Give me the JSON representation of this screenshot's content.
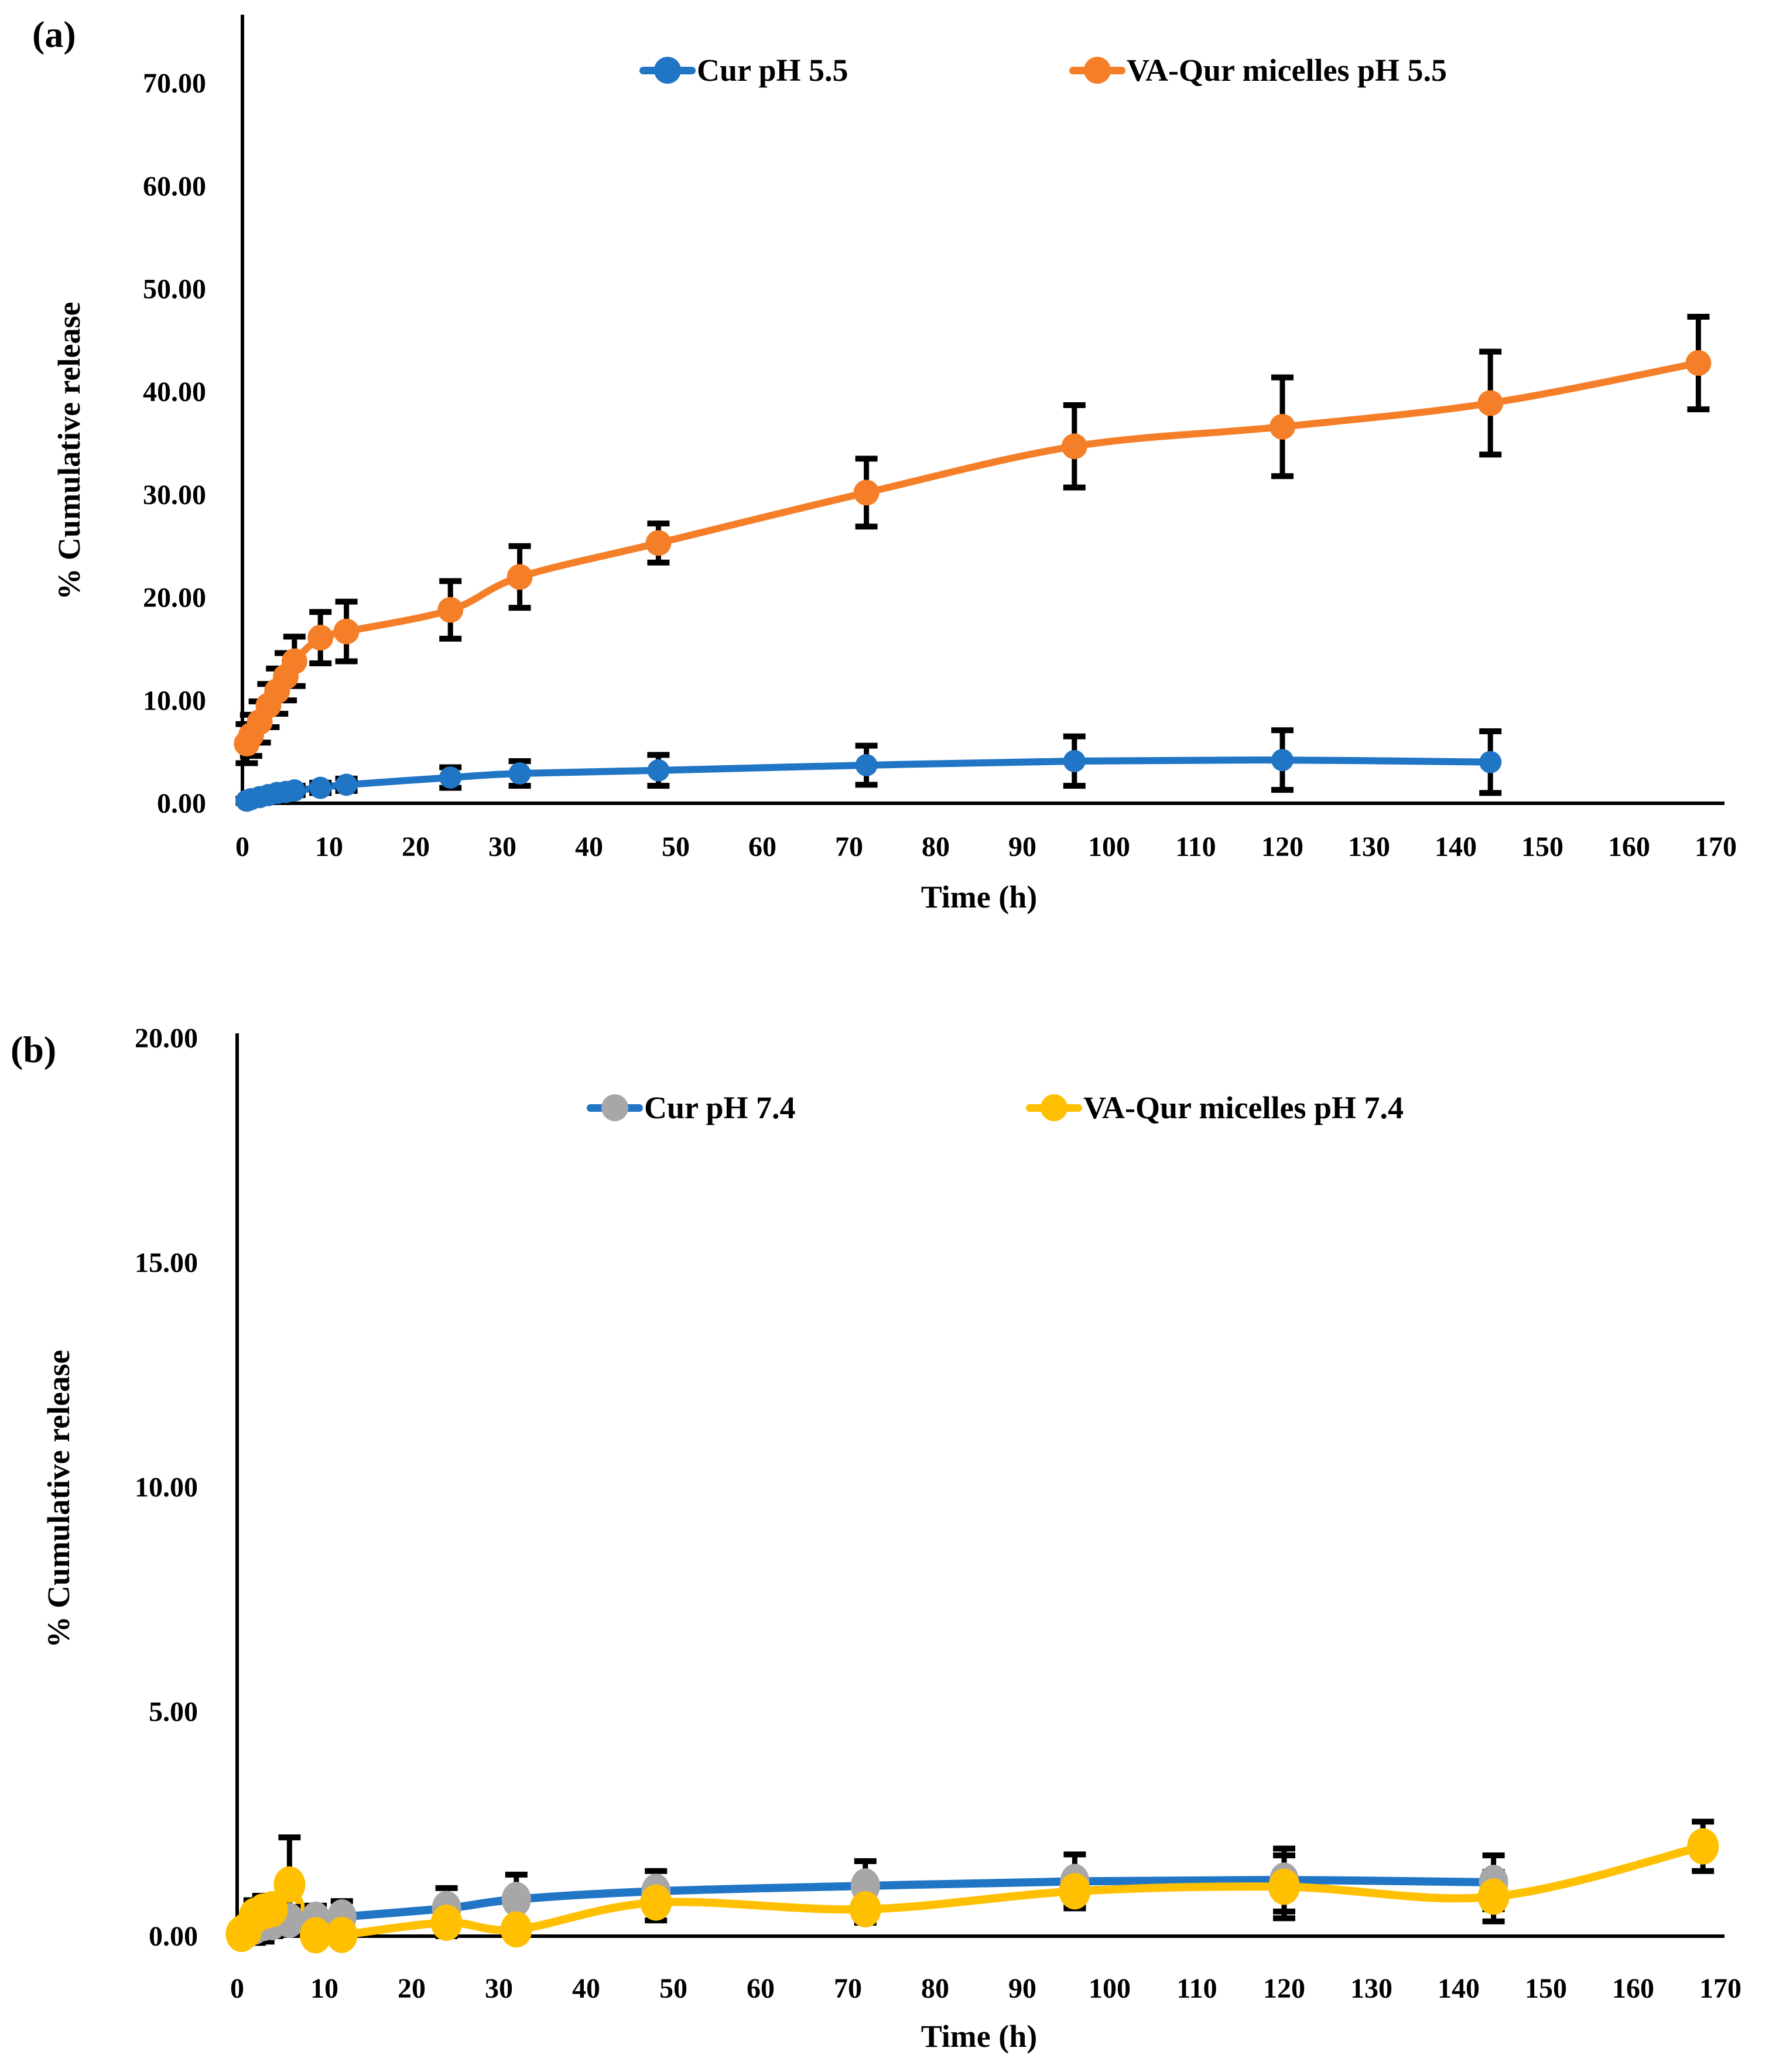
{
  "figure": {
    "background": "#ffffff",
    "axis_color": "#000000",
    "error_bar_color": "#000000"
  },
  "chart_data": [
    {
      "id": "a",
      "panel_label": "(a)",
      "type": "line",
      "title": "",
      "xlabel": "Time (h)",
      "ylabel": "% Cumulative release",
      "xlim": [
        0,
        170
      ],
      "ylim": [
        0,
        70
      ],
      "xticks": [
        0,
        10,
        20,
        30,
        40,
        50,
        60,
        70,
        80,
        90,
        100,
        110,
        120,
        130,
        140,
        150,
        160,
        170
      ],
      "yticks": [
        0,
        10,
        20,
        30,
        40,
        50,
        60,
        70
      ],
      "ytick_format_decimals": 2,
      "grid": false,
      "legend_position": "top-inside",
      "legend": [
        {
          "label": "Cur pH 5.5",
          "line_color": "#2075C5",
          "marker_color": "#2075C5"
        },
        {
          "label": "VA-Qur micelles pH 5.5",
          "line_color": "#F57E28",
          "marker_color": "#F57E28"
        }
      ],
      "series": [
        {
          "name": "Cur pH 5.5",
          "line_color": "#2075C5",
          "marker_color": "#2075C5",
          "x": [
            0.5,
            1,
            2,
            3,
            4,
            5,
            6,
            9,
            12,
            24,
            32,
            48,
            72,
            96,
            120,
            144
          ],
          "y": [
            0.25,
            0.4,
            0.6,
            0.8,
            1.0,
            1.1,
            1.25,
            1.5,
            1.8,
            2.5,
            2.9,
            3.2,
            3.7,
            4.1,
            4.2,
            4.0
          ],
          "err": [
            0.2,
            0.25,
            0.3,
            0.35,
            0.4,
            0.4,
            0.45,
            0.5,
            0.6,
            1.0,
            1.2,
            1.5,
            1.9,
            2.4,
            2.9,
            3.0
          ]
        },
        {
          "name": "VA-Qur micelles pH 5.5",
          "line_color": "#F57E28",
          "marker_color": "#F57E28",
          "x": [
            0.5,
            1,
            2,
            3,
            4,
            5,
            6,
            9,
            12,
            24,
            32,
            48,
            72,
            96,
            120,
            144,
            168
          ],
          "y": [
            5.8,
            6.6,
            7.9,
            9.5,
            10.9,
            12.3,
            13.8,
            16.1,
            16.7,
            18.8,
            22.0,
            25.3,
            30.2,
            34.7,
            36.6,
            38.9,
            42.8
          ],
          "err": [
            1.9,
            2.0,
            2.0,
            2.1,
            2.2,
            2.3,
            2.4,
            2.5,
            2.9,
            2.8,
            3.0,
            1.9,
            3.3,
            4.0,
            4.8,
            5.0,
            4.5
          ]
        }
      ]
    },
    {
      "id": "b",
      "panel_label": "(b)",
      "type": "line",
      "title": "",
      "xlabel": "Time (h)",
      "ylabel": "% Cumulative release",
      "xlim": [
        0,
        170
      ],
      "ylim": [
        0,
        20
      ],
      "xticks": [
        0,
        10,
        20,
        30,
        40,
        50,
        60,
        70,
        80,
        90,
        100,
        110,
        120,
        130,
        140,
        150,
        160,
        170
      ],
      "yticks": [
        0,
        5,
        10,
        15,
        20
      ],
      "ytick_format_decimals": 2,
      "grid": false,
      "legend_position": "top-inside",
      "legend": [
        {
          "label": "Cur pH 7.4",
          "line_color": "#2075C5",
          "marker_color": "#A7A7A7"
        },
        {
          "label": "VA-Qur micelles pH 7.4",
          "line_color": "#FFC001",
          "marker_color": "#FFC001"
        }
      ],
      "series": [
        {
          "name": "Cur pH 7.4",
          "line_color": "#2075C5",
          "marker_color": "#A7A7A7",
          "x": [
            0.5,
            1,
            2,
            3,
            4,
            6,
            9,
            12,
            24,
            32,
            48,
            72,
            96,
            120,
            144
          ],
          "y": [
            0.05,
            0.1,
            0.2,
            0.28,
            0.3,
            0.35,
            0.38,
            0.43,
            0.62,
            0.82,
            1.0,
            1.12,
            1.22,
            1.25,
            1.2
          ],
          "err": [
            0.1,
            0.25,
            0.35,
            0.4,
            0.3,
            0.3,
            0.3,
            0.35,
            0.45,
            0.55,
            0.45,
            0.55,
            0.6,
            0.7,
            0.6
          ]
        },
        {
          "name": "VA-Qur micelles pH 7.4",
          "line_color": "#FFC001",
          "marker_color": "#FFC001",
          "x": [
            0.5,
            1,
            2,
            3,
            4,
            6,
            9,
            12,
            24,
            32,
            48,
            72,
            96,
            120,
            144,
            168
          ],
          "y": [
            0.05,
            0.12,
            0.45,
            0.55,
            0.6,
            1.15,
            0.02,
            0.03,
            0.3,
            0.15,
            0.75,
            0.6,
            1.0,
            1.1,
            0.88,
            2.0
          ],
          "err": [
            0.1,
            0.15,
            0.35,
            0.35,
            0.3,
            1.05,
            0.12,
            0.12,
            0.3,
            0.2,
            0.4,
            0.3,
            0.35,
            0.7,
            0.55,
            0.55
          ]
        }
      ]
    }
  ]
}
